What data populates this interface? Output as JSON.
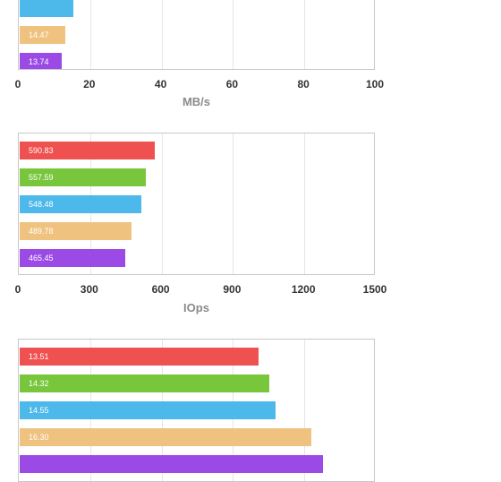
{
  "chart_data": [
    {
      "type": "bar",
      "orientation": "horizontal",
      "xlabel": "MB/s",
      "xlim": [
        0,
        100
      ],
      "ticks": [
        "0",
        "20",
        "40",
        "60",
        "80",
        "100"
      ],
      "grid": true,
      "bars": [
        {
          "value": 15.1,
          "label": "",
          "color": "#4db8ea"
        },
        {
          "value": 12.84,
          "label": "14.47",
          "color": "#efc27f"
        },
        {
          "value": 11.76,
          "label": "13.74",
          "color": "#9b4ae6"
        }
      ]
    },
    {
      "type": "bar",
      "orientation": "horizontal",
      "xlabel": "IOps",
      "xlim": [
        0,
        1500
      ],
      "ticks": [
        "0",
        "300",
        "600",
        "900",
        "1200",
        "1500"
      ],
      "grid": true,
      "bars": [
        {
          "value": 570,
          "label": "590.83",
          "color": "#ef5050"
        },
        {
          "value": 533,
          "label": "557.59",
          "color": "#78c63c"
        },
        {
          "value": 514,
          "label": "548.48",
          "color": "#4db8ea"
        },
        {
          "value": 473,
          "label": "489.78",
          "color": "#efc27f"
        },
        {
          "value": 446,
          "label": "465.45",
          "color": "#9b4ae6"
        }
      ]
    },
    {
      "type": "bar",
      "orientation": "horizontal",
      "xlabel": "",
      "ticks": [],
      "grid": true,
      "scale_max": 100,
      "bars": [
        {
          "value": 67.3,
          "label": "13.51",
          "color": "#ef5050"
        },
        {
          "value": 70.3,
          "label": "14.32",
          "color": "#78c63c"
        },
        {
          "value": 72.1,
          "label": "14.55",
          "color": "#4db8ea"
        },
        {
          "value": 82.1,
          "label": "16.30",
          "color": "#efc27f"
        },
        {
          "value": 85.4,
          "label": "",
          "color": "#9b4ae6"
        }
      ]
    }
  ]
}
